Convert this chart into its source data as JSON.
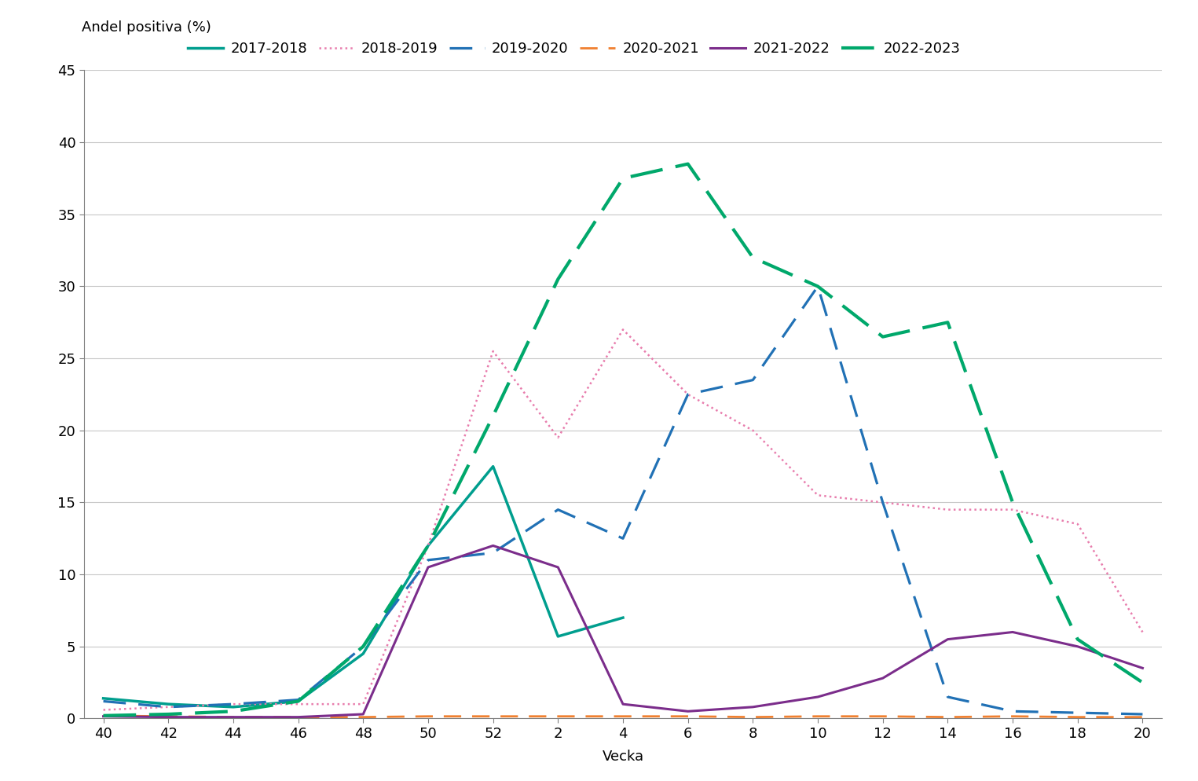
{
  "ylabel_text": "Andel positiva (%)",
  "xlabel": "Vecka",
  "ylim": [
    0,
    45
  ],
  "yticks": [
    0,
    5,
    10,
    15,
    20,
    25,
    30,
    35,
    40,
    45
  ],
  "x_labels": [
    "40",
    "42",
    "44",
    "46",
    "48",
    "50",
    "52",
    "2",
    "4",
    "6",
    "8",
    "10",
    "12",
    "14",
    "16",
    "18",
    "20"
  ],
  "series": [
    {
      "name": "2017-2018",
      "color": "#009E8E",
      "linestyle": "solid",
      "linewidth": 2.5,
      "dashes": null,
      "values": [
        1.4,
        1.0,
        0.8,
        1.2,
        4.5,
        12.0,
        17.5,
        5.7,
        7.0,
        null,
        null,
        null,
        null,
        null,
        null,
        null,
        null
      ]
    },
    {
      "name": "2018-2019",
      "color": "#E87DAD",
      "linestyle": "dotted",
      "linewidth": 1.8,
      "dashes": null,
      "values": [
        0.6,
        0.8,
        1.0,
        1.0,
        1.0,
        12.0,
        25.5,
        19.5,
        27.0,
        22.5,
        20.0,
        15.5,
        15.0,
        14.5,
        14.5,
        13.5,
        6.0
      ]
    },
    {
      "name": "2019-2020",
      "color": "#2171B5",
      "linestyle": "dashed",
      "linewidth": 2.3,
      "dashes": [
        9,
        5
      ],
      "values": [
        1.2,
        0.8,
        1.0,
        1.3,
        5.0,
        11.0,
        11.5,
        14.5,
        12.5,
        22.5,
        23.5,
        30.0,
        15.0,
        1.5,
        0.5,
        0.4,
        0.3
      ]
    },
    {
      "name": "2020-2021",
      "color": "#F08030",
      "linestyle": "dashed",
      "linewidth": 2.0,
      "dashes": [
        8,
        5
      ],
      "values": [
        0.2,
        0.15,
        0.1,
        0.1,
        0.1,
        0.15,
        0.15,
        0.15,
        0.15,
        0.15,
        0.1,
        0.15,
        0.15,
        0.1,
        0.15,
        0.1,
        0.1
      ]
    },
    {
      "name": "2021-2022",
      "color": "#7B2D8B",
      "linestyle": "solid",
      "linewidth": 2.2,
      "dashes": null,
      "values": [
        0.15,
        0.1,
        0.1,
        0.1,
        0.3,
        10.5,
        12.0,
        10.5,
        1.0,
        0.5,
        0.8,
        1.5,
        2.8,
        5.5,
        6.0,
        5.0,
        3.5
      ]
    },
    {
      "name": "2022-2023",
      "color": "#00A86B",
      "linestyle": "dashed",
      "linewidth": 3.0,
      "dashes": [
        10,
        4
      ],
      "values": [
        0.2,
        0.3,
        0.5,
        1.2,
        5.0,
        12.0,
        21.0,
        30.5,
        37.5,
        38.5,
        32.0,
        30.0,
        26.5,
        27.5,
        15.0,
        5.5,
        2.5
      ]
    }
  ],
  "background_color": "#ffffff",
  "grid_color": "#c8c8c8",
  "spine_color": "#808080"
}
